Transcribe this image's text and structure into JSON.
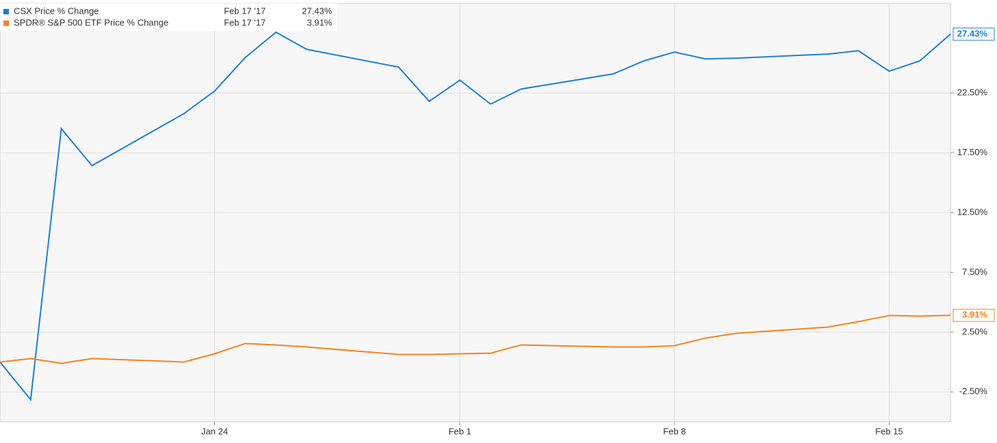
{
  "chart_data": {
    "type": "line",
    "x": [
      "Jan 17",
      "Jan 18",
      "Jan 19",
      "Jan 20",
      "Jan 23",
      "Jan 24",
      "Jan 25",
      "Jan 26",
      "Jan 27",
      "Jan 30",
      "Jan 31",
      "Feb 1",
      "Feb 2",
      "Feb 3",
      "Feb 6",
      "Feb 7",
      "Feb 8",
      "Feb 9",
      "Feb 10",
      "Feb 13",
      "Feb 14",
      "Feb 15",
      "Feb 16",
      "Feb 17"
    ],
    "xlim": [
      "Jan 17",
      "Feb 17"
    ],
    "xticks": [
      "Jan 24",
      "Feb 1",
      "Feb 8",
      "Feb 15"
    ],
    "ylim": [
      -5,
      30
    ],
    "yticks": [
      {
        "value": -2.5,
        "label": "-2.50%"
      },
      {
        "value": 2.5,
        "label": "2.50%"
      },
      {
        "value": 7.5,
        "label": "7.50%"
      },
      {
        "value": 12.5,
        "label": "12.50%"
      },
      {
        "value": 17.5,
        "label": "17.50%"
      },
      {
        "value": 22.5,
        "label": "22.50%"
      }
    ],
    "grid": true,
    "series": [
      {
        "name": "CSX Price % Change",
        "color": "#1f7ed6",
        "legend_date": "Feb 17 '17",
        "last_label": "27.43%",
        "values": [
          0,
          -3.15,
          19.52,
          16.43,
          20.78,
          22.67,
          25.47,
          27.59,
          26.16,
          24.67,
          21.81,
          23.58,
          21.58,
          22.84,
          24.1,
          25.19,
          25.93,
          25.36,
          25.42,
          25.76,
          26.04,
          24.33,
          25.19,
          27.43
        ]
      },
      {
        "name": "SPDR® S&P 500 ETF Price % Change",
        "color": "#f5821f",
        "legend_date": "Feb 17 '17",
        "last_label": "3.91%",
        "values": [
          0,
          0.29,
          -0.11,
          0.29,
          0,
          0.69,
          1.55,
          1.43,
          1.26,
          0.63,
          0.63,
          0.69,
          0.74,
          1.43,
          1.26,
          1.26,
          1.37,
          2.0,
          2.4,
          2.92,
          3.38,
          3.89,
          3.84,
          3.91
        ]
      }
    ]
  }
}
